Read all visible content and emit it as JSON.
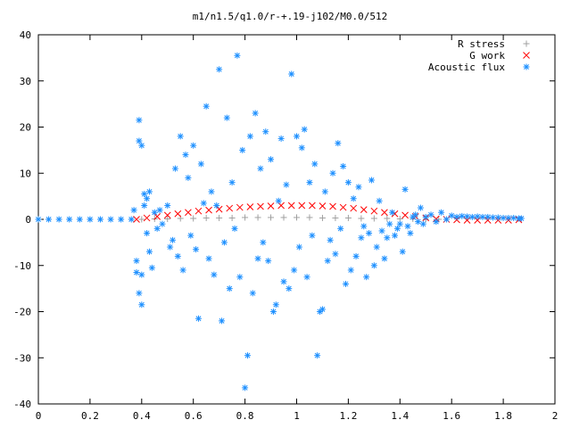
{
  "chart_data": {
    "type": "scatter",
    "title": "m1/n1.5/q1.0/r-+.19-j102/M0.0/512",
    "xlabel": "",
    "ylabel": "",
    "xlim": [
      0,
      2
    ],
    "ylim": [
      -40,
      40
    ],
    "x_ticks": [
      "0",
      "0.2",
      "0.4",
      "0.6",
      "0.8",
      "1",
      "1.2",
      "1.4",
      "1.6",
      "1.8",
      "2"
    ],
    "y_ticks": [
      "-40",
      "-30",
      "-20",
      "-10",
      "0",
      "10",
      "20",
      "30",
      "40"
    ],
    "grid": false,
    "legend_position": "top-right",
    "series": [
      {
        "name": "R stress",
        "marker": "+",
        "color": "#a0a0a0",
        "points": [
          [
            0.4,
            0.0
          ],
          [
            0.45,
            0.1
          ],
          [
            0.5,
            0.1
          ],
          [
            0.55,
            0.2
          ],
          [
            0.6,
            0.2
          ],
          [
            0.65,
            0.3
          ],
          [
            0.7,
            0.3
          ],
          [
            0.75,
            0.3
          ],
          [
            0.8,
            0.4
          ],
          [
            0.85,
            0.4
          ],
          [
            0.9,
            0.4
          ],
          [
            0.95,
            0.4
          ],
          [
            1.0,
            0.4
          ],
          [
            1.05,
            0.4
          ],
          [
            1.1,
            0.3
          ],
          [
            1.15,
            0.3
          ],
          [
            1.2,
            0.3
          ],
          [
            1.25,
            0.2
          ],
          [
            1.3,
            0.2
          ],
          [
            1.35,
            0.2
          ],
          [
            1.4,
            0.1
          ],
          [
            1.45,
            0.1
          ],
          [
            1.5,
            0.0
          ],
          [
            1.55,
            0.0
          ]
        ]
      },
      {
        "name": "G work",
        "marker": "x",
        "color": "#ff0000",
        "points": [
          [
            0.38,
            0.0
          ],
          [
            0.42,
            0.3
          ],
          [
            0.46,
            0.6
          ],
          [
            0.5,
            0.9
          ],
          [
            0.54,
            1.2
          ],
          [
            0.58,
            1.5
          ],
          [
            0.62,
            1.8
          ],
          [
            0.66,
            2.0
          ],
          [
            0.7,
            2.2
          ],
          [
            0.74,
            2.4
          ],
          [
            0.78,
            2.6
          ],
          [
            0.82,
            2.7
          ],
          [
            0.86,
            2.8
          ],
          [
            0.9,
            2.9
          ],
          [
            0.94,
            3.0
          ],
          [
            0.98,
            3.0
          ],
          [
            1.02,
            3.0
          ],
          [
            1.06,
            3.0
          ],
          [
            1.1,
            2.9
          ],
          [
            1.14,
            2.8
          ],
          [
            1.18,
            2.6
          ],
          [
            1.22,
            2.4
          ],
          [
            1.26,
            2.1
          ],
          [
            1.3,
            1.8
          ],
          [
            1.34,
            1.5
          ],
          [
            1.38,
            1.2
          ],
          [
            1.42,
            0.9
          ],
          [
            1.46,
            0.6
          ],
          [
            1.5,
            0.3
          ],
          [
            1.54,
            0.1
          ],
          [
            1.58,
            0.0
          ],
          [
            1.62,
            -0.1
          ],
          [
            1.66,
            -0.2
          ],
          [
            1.7,
            -0.2
          ],
          [
            1.74,
            -0.2
          ],
          [
            1.78,
            -0.2
          ],
          [
            1.82,
            -0.2
          ],
          [
            1.86,
            -0.1
          ]
        ]
      },
      {
        "name": "Acoustic flux",
        "marker": "*",
        "color": "#1e90ff",
        "points": [
          [
            0.0,
            0.0
          ],
          [
            0.04,
            0.0
          ],
          [
            0.08,
            0.0
          ],
          [
            0.12,
            0.0
          ],
          [
            0.16,
            0.0
          ],
          [
            0.2,
            0.0
          ],
          [
            0.24,
            0.0
          ],
          [
            0.28,
            0.0
          ],
          [
            0.32,
            0.0
          ],
          [
            0.36,
            0.0
          ],
          [
            0.37,
            2.0
          ],
          [
            0.38,
            -9.0
          ],
          [
            0.38,
            -11.5
          ],
          [
            0.39,
            21.5
          ],
          [
            0.39,
            17.0
          ],
          [
            0.39,
            -16.0
          ],
          [
            0.4,
            -18.5
          ],
          [
            0.4,
            -12.0
          ],
          [
            0.4,
            16.0
          ],
          [
            0.41,
            5.5
          ],
          [
            0.41,
            3.0
          ],
          [
            0.42,
            -3.0
          ],
          [
            0.42,
            4.5
          ],
          [
            0.43,
            6.0
          ],
          [
            0.43,
            -7.0
          ],
          [
            0.44,
            -10.5
          ],
          [
            0.45,
            1.5
          ],
          [
            0.46,
            -2.0
          ],
          [
            0.47,
            2.0
          ],
          [
            0.48,
            -1.0
          ],
          [
            0.5,
            3.0
          ],
          [
            0.51,
            -6.0
          ],
          [
            0.52,
            -4.5
          ],
          [
            0.53,
            11.0
          ],
          [
            0.54,
            -8.0
          ],
          [
            0.55,
            18.0
          ],
          [
            0.56,
            -11.0
          ],
          [
            0.57,
            14.0
          ],
          [
            0.58,
            9.0
          ],
          [
            0.59,
            -3.5
          ],
          [
            0.6,
            16.0
          ],
          [
            0.61,
            -6.5
          ],
          [
            0.62,
            -21.5
          ],
          [
            0.63,
            12.0
          ],
          [
            0.64,
            3.5
          ],
          [
            0.65,
            24.5
          ],
          [
            0.66,
            -8.5
          ],
          [
            0.67,
            6.0
          ],
          [
            0.68,
            -12.0
          ],
          [
            0.69,
            3.0
          ],
          [
            0.7,
            32.5
          ],
          [
            0.71,
            -22.0
          ],
          [
            0.72,
            -5.0
          ],
          [
            0.73,
            22.0
          ],
          [
            0.74,
            -15.0
          ],
          [
            0.75,
            8.0
          ],
          [
            0.76,
            -2.0
          ],
          [
            0.77,
            35.5
          ],
          [
            0.78,
            -12.5
          ],
          [
            0.79,
            15.0
          ],
          [
            0.8,
            -36.5
          ],
          [
            0.81,
            -29.5
          ],
          [
            0.82,
            18.0
          ],
          [
            0.83,
            -16.0
          ],
          [
            0.84,
            23.0
          ],
          [
            0.85,
            -8.5
          ],
          [
            0.86,
            11.0
          ],
          [
            0.87,
            -5.0
          ],
          [
            0.88,
            19.0
          ],
          [
            0.89,
            -9.0
          ],
          [
            0.9,
            13.0
          ],
          [
            0.91,
            -20.0
          ],
          [
            0.92,
            -18.5
          ],
          [
            0.93,
            4.0
          ],
          [
            0.94,
            17.5
          ],
          [
            0.95,
            -13.5
          ],
          [
            0.96,
            7.5
          ],
          [
            0.97,
            -15.0
          ],
          [
            0.98,
            31.5
          ],
          [
            0.99,
            -11.0
          ],
          [
            1.0,
            18.0
          ],
          [
            1.01,
            -6.0
          ],
          [
            1.02,
            15.5
          ],
          [
            1.03,
            19.5
          ],
          [
            1.04,
            -12.5
          ],
          [
            1.05,
            8.0
          ],
          [
            1.06,
            -3.5
          ],
          [
            1.07,
            12.0
          ],
          [
            1.08,
            -29.5
          ],
          [
            1.09,
            -20.0
          ],
          [
            1.1,
            -19.5
          ],
          [
            1.11,
            6.0
          ],
          [
            1.12,
            -9.0
          ],
          [
            1.13,
            -4.5
          ],
          [
            1.14,
            10.0
          ],
          [
            1.15,
            -7.5
          ],
          [
            1.16,
            16.5
          ],
          [
            1.17,
            -2.0
          ],
          [
            1.18,
            11.5
          ],
          [
            1.19,
            -14.0
          ],
          [
            1.2,
            8.0
          ],
          [
            1.21,
            -11.0
          ],
          [
            1.22,
            4.5
          ],
          [
            1.23,
            -8.0
          ],
          [
            1.24,
            7.0
          ],
          [
            1.25,
            -4.0
          ],
          [
            1.26,
            -1.5
          ],
          [
            1.27,
            -12.5
          ],
          [
            1.28,
            -3.0
          ],
          [
            1.29,
            8.5
          ],
          [
            1.3,
            -10.0
          ],
          [
            1.31,
            -6.0
          ],
          [
            1.32,
            4.0
          ],
          [
            1.33,
            -2.5
          ],
          [
            1.34,
            -8.5
          ],
          [
            1.35,
            -4.0
          ],
          [
            1.36,
            -1.0
          ],
          [
            1.37,
            1.5
          ],
          [
            1.38,
            -3.5
          ],
          [
            1.39,
            -2.0
          ],
          [
            1.4,
            -1.0
          ],
          [
            1.41,
            -7.0
          ],
          [
            1.42,
            6.5
          ],
          [
            1.43,
            -1.5
          ],
          [
            1.44,
            -3.0
          ],
          [
            1.45,
            0.5
          ],
          [
            1.46,
            1.0
          ],
          [
            1.47,
            -0.5
          ],
          [
            1.48,
            2.5
          ],
          [
            1.49,
            -1.0
          ],
          [
            1.5,
            0.5
          ],
          [
            1.52,
            1.0
          ],
          [
            1.54,
            -0.5
          ],
          [
            1.56,
            1.5
          ],
          [
            1.58,
            0.0
          ],
          [
            1.6,
            0.8
          ],
          [
            1.62,
            0.5
          ],
          [
            1.64,
            0.7
          ],
          [
            1.66,
            0.6
          ],
          [
            1.68,
            0.5
          ],
          [
            1.7,
            0.6
          ],
          [
            1.72,
            0.5
          ],
          [
            1.74,
            0.5
          ],
          [
            1.76,
            0.4
          ],
          [
            1.78,
            0.4
          ],
          [
            1.8,
            0.3
          ],
          [
            1.82,
            0.3
          ],
          [
            1.84,
            0.3
          ],
          [
            1.86,
            0.2
          ],
          [
            1.87,
            0.2
          ]
        ]
      }
    ]
  }
}
